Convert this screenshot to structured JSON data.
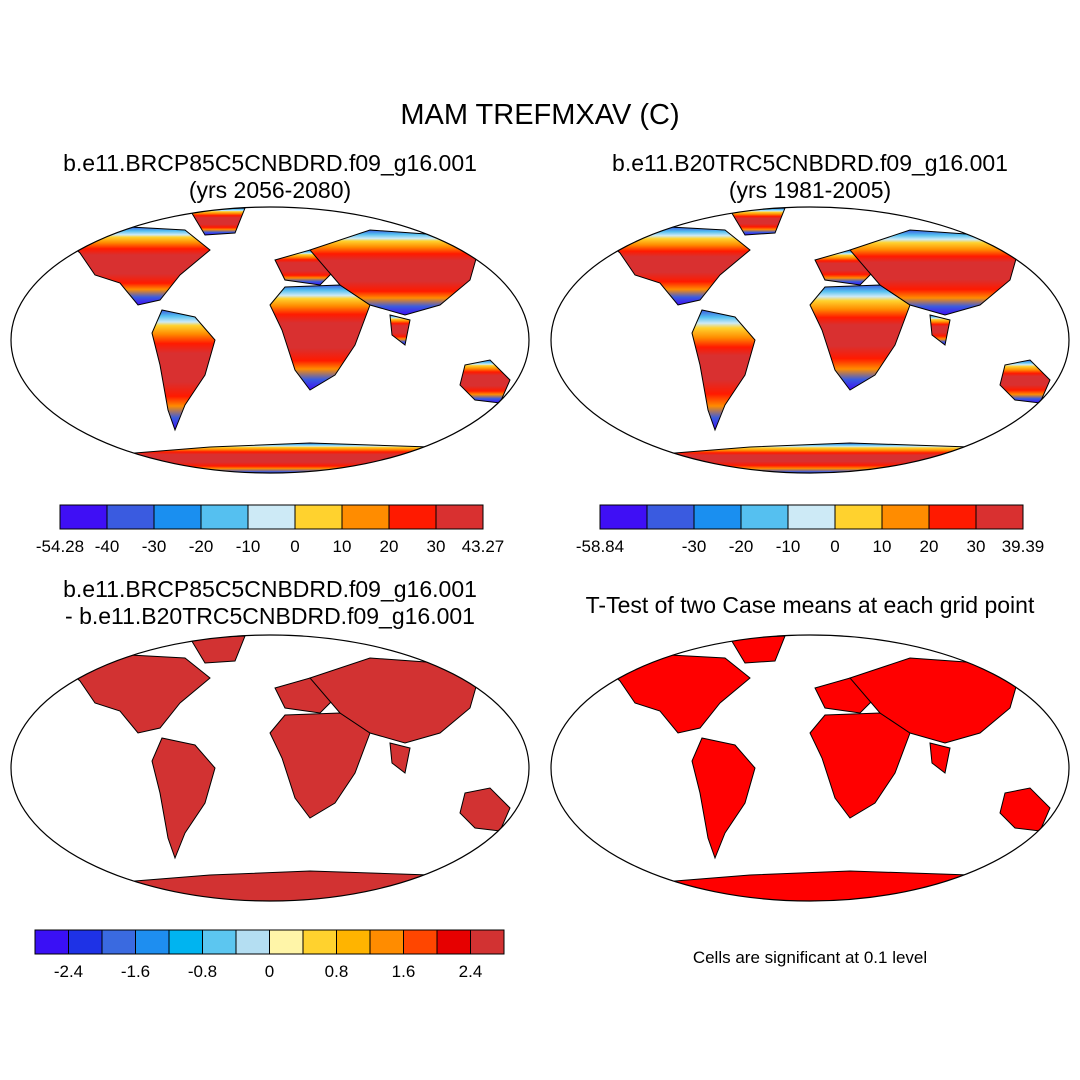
{
  "figure": {
    "title": "MAM TREFMXAV (C)"
  },
  "panels": [
    {
      "title_line1": "b.e11.BRCP85C5CNBDRD.f09_g16.001",
      "title_line2": "(yrs 2056-2080)"
    },
    {
      "title_line1": "b.e11.B20TRC5CNBDRD.f09_g16.001",
      "title_line2": "(yrs 1981-2005)"
    },
    {
      "title_line1": "b.e11.BRCP85C5CNBDRD.f09_g16.001",
      "title_line2": "- b.e11.B20TRC5CNBDRD.f09_g16.001"
    },
    {
      "title_line1": "T-Test of two Case means at each grid point",
      "title_line2": ""
    }
  ],
  "colorbars": [
    {
      "colors": [
        "#3f0ff5",
        "#3a5be0",
        "#1a8ff0",
        "#55c0f0",
        "#cdeaf6",
        "#ffd22e",
        "#ff8c00",
        "#ff1a00",
        "#d93030"
      ],
      "labels": [
        "-54.28",
        "-40",
        "-30",
        "-20",
        "-10",
        "0",
        "10",
        "20",
        "30",
        "43.27"
      ]
    },
    {
      "colors": [
        "#3f0ff5",
        "#3a5be0",
        "#1a8ff0",
        "#55c0f0",
        "#cdeaf6",
        "#ffd22e",
        "#ff8c00",
        "#ff1a00",
        "#d93030"
      ],
      "labels": [
        "-58.84",
        "",
        "-30",
        "-20",
        "-10",
        "0",
        "10",
        "20",
        "30",
        "39.39"
      ]
    },
    {
      "colors": [
        "#3a10f5",
        "#1e32e6",
        "#3a6ae0",
        "#1e8ef0",
        "#00b4f0",
        "#5cc6f0",
        "#b4def2",
        "#fff5a8",
        "#ffd22e",
        "#ffb400",
        "#ff8c00",
        "#ff4600",
        "#e60000",
        "#d23232"
      ],
      "labels": [
        "",
        "-2.4",
        "",
        "-1.6",
        "",
        "-0.8",
        "",
        "0",
        "",
        "0.8",
        "",
        "1.6",
        "",
        "2.4",
        ""
      ]
    }
  ],
  "note": "Cells are significant at 0.1 level"
}
